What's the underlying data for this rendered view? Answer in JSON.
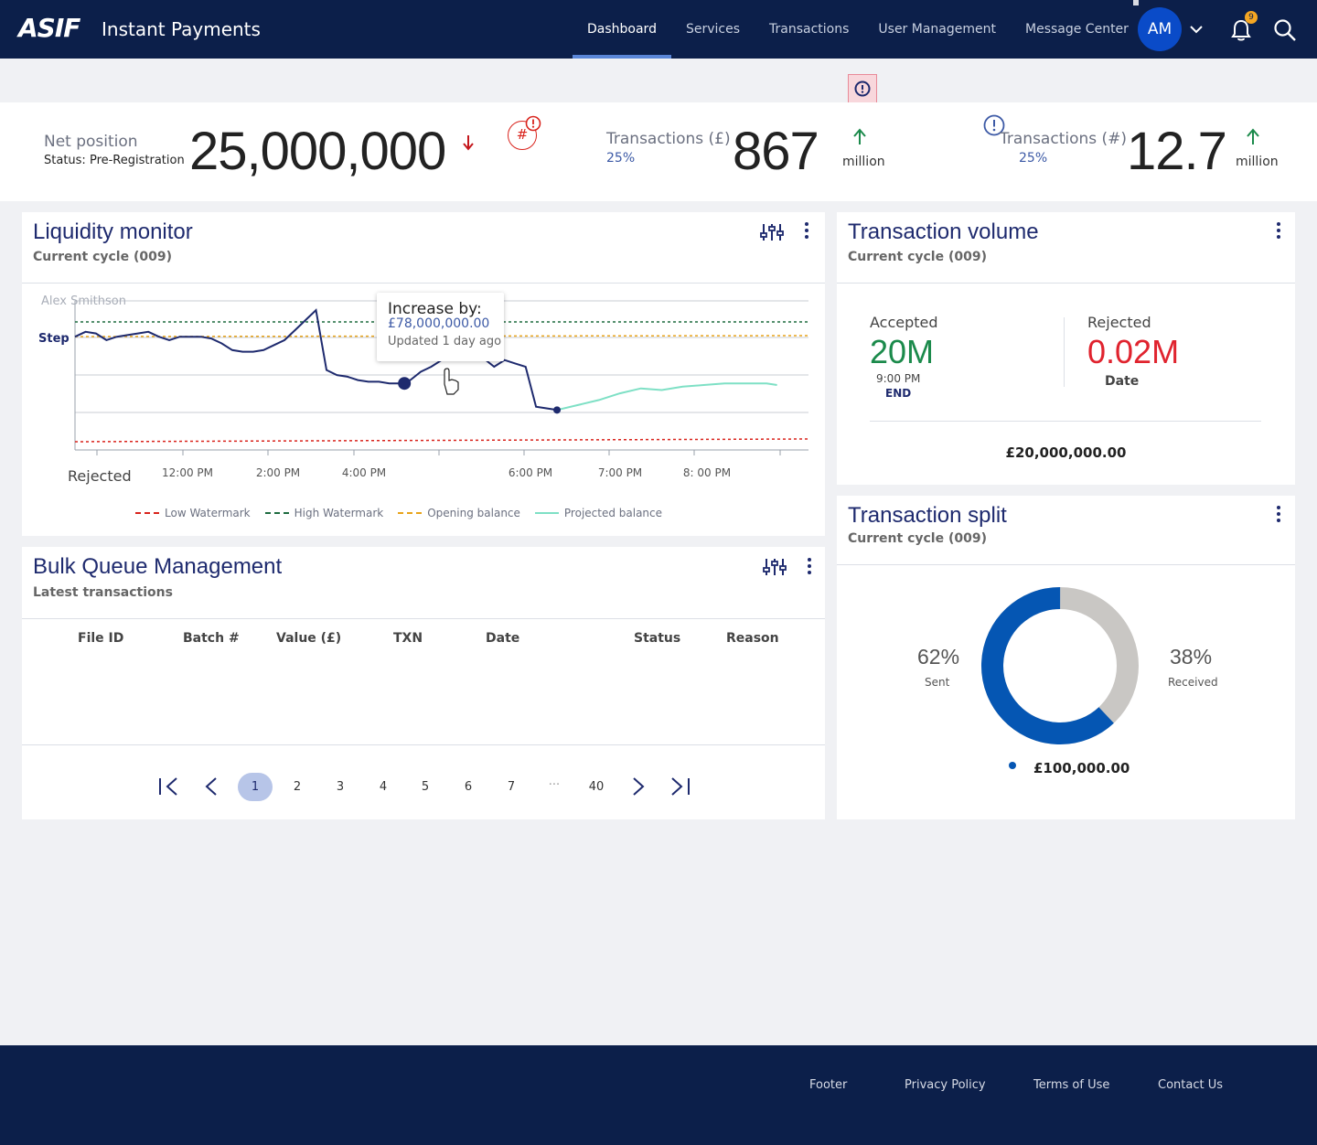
{
  "header": {
    "logo": "ASIF",
    "app_title": "Instant Payments",
    "nav": [
      "Dashboard",
      "Services",
      "Transactions",
      "User Management",
      "Message Center"
    ],
    "active_nav": "Dashboard",
    "avatar_initials": "AM",
    "notification_count": "9"
  },
  "kpis": {
    "net_position": {
      "label": "Net position",
      "status_label": "Status:",
      "status_value": "Pre-Registration",
      "value": "25,000,000",
      "trend": "down"
    },
    "hash_badge": "#",
    "transactions_gbp": {
      "label": "Transactions (£)",
      "pct": "25%",
      "value": "867",
      "unit": "million",
      "trend": "up"
    },
    "transactions_count": {
      "label": "Transactions (#)",
      "pct": "25%",
      "value": "12.7",
      "unit": "million",
      "trend": "up"
    }
  },
  "liquidity": {
    "title": "Liquidity monitor",
    "subtitle": "Current cycle (009)",
    "watermark_name": "Alex Smithson",
    "step_label": "Step",
    "rejected_label": "Rejected",
    "tooltip": {
      "title": "Increase by:",
      "value": "£78,000,000.00",
      "time": "Updated 1 day ago"
    }
  },
  "chart_data": {
    "type": "line",
    "xlabel": "",
    "ylabel": "",
    "x_ticks": [
      "12:00 PM",
      "2:00 PM",
      "4:00 PM",
      "6:00 PM",
      "7:00 PM",
      "8: 00 PM"
    ],
    "legend": [
      "Low Watermark",
      "High Watermark",
      "Opening balance",
      "Projected balance"
    ],
    "legend_position": "bottom",
    "grid": true,
    "colors": {
      "balance": "#1e2a6e",
      "low_watermark": "#d9231c",
      "high_watermark": "#1d6b3f",
      "opening_balance": "#e8a31a",
      "projected": "#7ee0c5"
    },
    "series": [
      {
        "name": "",
        "points": [
          [
            0,
            68
          ],
          [
            1,
            71
          ],
          [
            2,
            70
          ],
          [
            3,
            66
          ],
          [
            4,
            68
          ],
          [
            5,
            69
          ],
          [
            6,
            70
          ],
          [
            7,
            71
          ],
          [
            8,
            68
          ],
          [
            9,
            66
          ],
          [
            10,
            68
          ],
          [
            11,
            68
          ],
          [
            12,
            68
          ],
          [
            13,
            67
          ],
          [
            14,
            64
          ],
          [
            15,
            60
          ],
          [
            16,
            59
          ],
          [
            17,
            59
          ],
          [
            18,
            60
          ],
          [
            19,
            63
          ],
          [
            20,
            66
          ],
          [
            21,
            72
          ],
          [
            22,
            78
          ],
          [
            23,
            84
          ],
          [
            24,
            48
          ],
          [
            25,
            45
          ],
          [
            26,
            44
          ],
          [
            27,
            42
          ],
          [
            28,
            41
          ],
          [
            29,
            41
          ],
          [
            30,
            40
          ],
          [
            31,
            40
          ],
          [
            32,
            42
          ],
          [
            33,
            47
          ],
          [
            34,
            50
          ],
          [
            35,
            54
          ],
          [
            36,
            56
          ],
          [
            37,
            60
          ],
          [
            38,
            58
          ],
          [
            39,
            55
          ],
          [
            40,
            50
          ],
          [
            41,
            54
          ],
          [
            42,
            52
          ],
          [
            43,
            50
          ],
          [
            44,
            26
          ],
          [
            45,
            25
          ],
          [
            46,
            24
          ]
        ]
      },
      {
        "name": "Projected balance",
        "points": [
          [
            46,
            24
          ],
          [
            48,
            27
          ],
          [
            50,
            30
          ],
          [
            52,
            34
          ],
          [
            54,
            37
          ],
          [
            56,
            36
          ],
          [
            58,
            38
          ],
          [
            60,
            39
          ],
          [
            62,
            40
          ],
          [
            64,
            40
          ],
          [
            66,
            40
          ],
          [
            67,
            39
          ]
        ]
      }
    ]
  },
  "bulk_queue": {
    "title": "Bulk Queue Management",
    "subtitle": "Latest transactions",
    "columns": [
      "File ID",
      "Batch #",
      "Value (£)",
      "TXN",
      "Date",
      "Status",
      "Reason"
    ],
    "rows": [],
    "pagination": {
      "pages": [
        "1",
        "2",
        "3",
        "4",
        "5",
        "6",
        "7"
      ],
      "ellipsis": "···",
      "last_page": "40",
      "current": "1"
    }
  },
  "transaction_volume": {
    "title": "Transaction volume",
    "subtitle": "Current cycle (009)",
    "accepted_label": "Accepted",
    "accepted_value": "20M",
    "accepted_time": "9:00 PM",
    "accepted_end": "END",
    "rejected_label": "Rejected",
    "rejected_value": "0.02M",
    "rejected_sub": "Date",
    "total": "£20,000,000.00",
    "colors": {
      "accepted": "#1b8a4b",
      "rejected": "#e0232e"
    }
  },
  "transaction_split": {
    "title": "Transaction split",
    "subtitle": "Current cycle (009)",
    "sent_pct": "62%",
    "sent_label": "Sent",
    "received_pct": "38%",
    "received_label": "Received",
    "total": "£100,000.00",
    "sent_fraction": 0.62,
    "colors": {
      "sent": "#0556b3",
      "received": "#c9c7c4"
    }
  },
  "footer": {
    "links": [
      "Footer",
      "Privacy Policy",
      "Terms of Use",
      "Contact Us"
    ]
  }
}
